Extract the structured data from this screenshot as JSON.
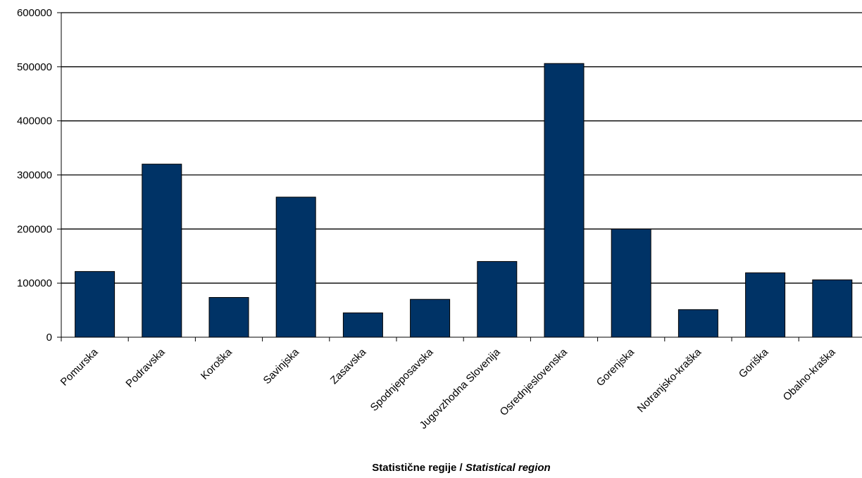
{
  "colors": {
    "bar": "#003366",
    "grid": "#000000",
    "axis": "#000000",
    "background": "#ffffff"
  },
  "chart_data": {
    "type": "bar",
    "title": "",
    "xlabel_main": "Statistične regije / ",
    "xlabel_italic": "Statistical region",
    "ylabel": "",
    "ylim": [
      0,
      600000
    ],
    "yticks": [
      "0",
      "100000",
      "200000",
      "300000",
      "400000",
      "500000",
      "600000"
    ],
    "grid": "horizontal",
    "categories": [
      "Pomurska",
      "Podravska",
      "Koroška",
      "Savinjska",
      "Zasavska",
      "Spodnjeposavska",
      "Jugovzhodna Slovenija",
      "Osrednjeslovenska",
      "Gorenjska",
      "Notranjsko-kraška",
      "Goriška",
      "Obalno-kraška"
    ],
    "values": [
      121500,
      320000,
      73500,
      259000,
      45000,
      70000,
      140000,
      506000,
      200000,
      51000,
      119000,
      106000
    ]
  }
}
